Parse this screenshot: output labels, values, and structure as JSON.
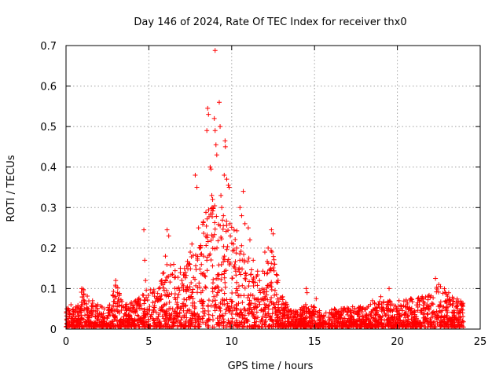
{
  "chart_data": {
    "type": "scatter",
    "title": "Day 146 of 2024, Rate Of TEC Index for receiver thx0",
    "xlabel": "GPS time / hours",
    "ylabel": "ROTI / TECUs",
    "xlim": [
      0,
      25
    ],
    "ylim": [
      0,
      0.7
    ],
    "xticks": [
      0,
      5,
      10,
      15,
      20,
      25
    ],
    "xtick_labels": [
      "0",
      "5",
      "10",
      "15",
      "20",
      "25"
    ],
    "yticks": [
      0,
      0.1,
      0.2,
      0.3,
      0.4,
      0.5,
      0.6,
      0.7
    ],
    "ytick_labels": [
      "0",
      "0.1",
      "0.2",
      "0.3",
      "0.4",
      "0.5",
      "0.6",
      "0.7"
    ],
    "grid": true,
    "marker": "+",
    "series": [
      {
        "name": "ROTI",
        "color": "#ff0000",
        "note": "dense baseline 0-24h at 0.0-0.06 TECU plus the notable outliers below",
        "points": [
          [
            0.05,
            0.05
          ],
          [
            0.3,
            0.06
          ],
          [
            0.95,
            0.1
          ],
          [
            1.05,
            0.095
          ],
          [
            1.6,
            0.07
          ],
          [
            2.3,
            0.05
          ],
          [
            3.0,
            0.12
          ],
          [
            3.1,
            0.09
          ],
          [
            3.6,
            0.06
          ],
          [
            4.2,
            0.07
          ],
          [
            4.7,
            0.245
          ],
          [
            4.75,
            0.17
          ],
          [
            4.8,
            0.12
          ],
          [
            5.2,
            0.09
          ],
          [
            5.6,
            0.1
          ],
          [
            6.1,
            0.245
          ],
          [
            6.2,
            0.23
          ],
          [
            6.0,
            0.18
          ],
          [
            6.5,
            0.16
          ],
          [
            6.9,
            0.15
          ],
          [
            7.2,
            0.14
          ],
          [
            7.5,
            0.19
          ],
          [
            7.6,
            0.21
          ],
          [
            7.8,
            0.38
          ],
          [
            7.9,
            0.35
          ],
          [
            8.0,
            0.25
          ],
          [
            8.1,
            0.2
          ],
          [
            8.3,
            0.18
          ],
          [
            8.55,
            0.545
          ],
          [
            8.6,
            0.53
          ],
          [
            8.5,
            0.49
          ],
          [
            8.7,
            0.4
          ],
          [
            8.75,
            0.395
          ],
          [
            8.8,
            0.33
          ],
          [
            8.85,
            0.32
          ],
          [
            8.95,
            0.52
          ],
          [
            9.0,
            0.49
          ],
          [
            9.05,
            0.455
          ],
          [
            9.1,
            0.43
          ],
          [
            9.0,
            0.688
          ],
          [
            9.25,
            0.56
          ],
          [
            9.3,
            0.5
          ],
          [
            9.35,
            0.33
          ],
          [
            9.4,
            0.3
          ],
          [
            9.5,
            0.28
          ],
          [
            9.55,
            0.38
          ],
          [
            9.6,
            0.465
          ],
          [
            9.62,
            0.45
          ],
          [
            9.7,
            0.37
          ],
          [
            9.8,
            0.355
          ],
          [
            9.85,
            0.35
          ],
          [
            9.9,
            0.26
          ],
          [
            10.1,
            0.21
          ],
          [
            10.3,
            0.2
          ],
          [
            10.5,
            0.3
          ],
          [
            10.6,
            0.28
          ],
          [
            10.7,
            0.34
          ],
          [
            10.8,
            0.26
          ],
          [
            11.0,
            0.25
          ],
          [
            11.1,
            0.22
          ],
          [
            11.3,
            0.17
          ],
          [
            11.5,
            0.13
          ],
          [
            12.0,
            0.19
          ],
          [
            12.2,
            0.2
          ],
          [
            12.4,
            0.245
          ],
          [
            12.5,
            0.235
          ],
          [
            12.6,
            0.16
          ],
          [
            12.8,
            0.12
          ],
          [
            13.2,
            0.06
          ],
          [
            14.5,
            0.1
          ],
          [
            14.55,
            0.09
          ],
          [
            15.1,
            0.075
          ],
          [
            16.2,
            0.05
          ],
          [
            17.3,
            0.055
          ],
          [
            18.5,
            0.07
          ],
          [
            19.0,
            0.08
          ],
          [
            19.5,
            0.1
          ],
          [
            20.1,
            0.07
          ],
          [
            20.8,
            0.075
          ],
          [
            21.5,
            0.08
          ],
          [
            22.3,
            0.125
          ],
          [
            22.5,
            0.11
          ],
          [
            22.9,
            0.09
          ],
          [
            23.4,
            0.075
          ],
          [
            23.9,
            0.06
          ]
        ]
      }
    ],
    "envelope": {
      "description": "approximate upper envelope of the dense point cloud (hours, TECU)",
      "x": [
        0,
        0.5,
        1,
        1.5,
        2,
        2.5,
        3,
        3.5,
        4,
        4.5,
        5,
        5.5,
        6,
        6.5,
        7,
        7.5,
        8,
        8.5,
        9,
        9.5,
        10,
        10.5,
        11,
        11.5,
        12,
        12.5,
        13,
        13.5,
        14,
        14.5,
        15,
        15.5,
        16,
        16.5,
        17,
        17.5,
        18,
        18.5,
        19,
        19.5,
        20,
        20.5,
        21,
        21.5,
        22,
        22.5,
        23,
        23.5,
        24
      ],
      "y": [
        0.05,
        0.045,
        0.1,
        0.06,
        0.055,
        0.05,
        0.11,
        0.06,
        0.065,
        0.075,
        0.1,
        0.09,
        0.16,
        0.15,
        0.14,
        0.18,
        0.22,
        0.3,
        0.3,
        0.3,
        0.27,
        0.22,
        0.2,
        0.14,
        0.16,
        0.2,
        0.08,
        0.045,
        0.04,
        0.06,
        0.05,
        0.04,
        0.045,
        0.045,
        0.05,
        0.05,
        0.055,
        0.06,
        0.065,
        0.07,
        0.07,
        0.07,
        0.07,
        0.075,
        0.08,
        0.11,
        0.09,
        0.075,
        0.06
      ]
    }
  }
}
